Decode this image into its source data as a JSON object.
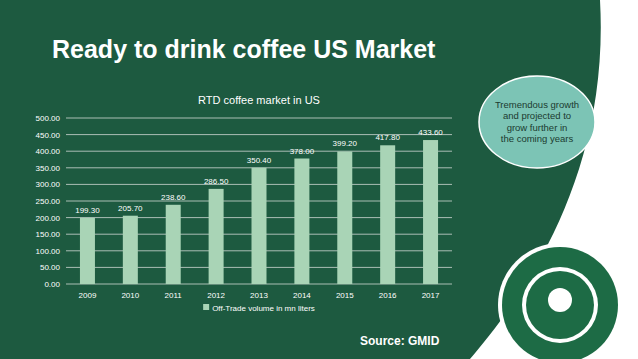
{
  "slide": {
    "title": "Ready to drink coffee US Market",
    "callout": "Tremendous growth and projected to grow further in the coming years",
    "source": "Source: GMID"
  },
  "chart_data": {
    "type": "bar",
    "title": "RTD coffee market in US",
    "categories": [
      "2009",
      "2010",
      "2011",
      "2012",
      "2013",
      "2014",
      "2015",
      "2016",
      "2017"
    ],
    "series": [
      {
        "name": "Off-Trade volume in mn liters",
        "color": "#a9d4b6",
        "values": [
          199.3,
          205.7,
          238.6,
          286.5,
          350.4,
          378.0,
          399.2,
          417.8,
          433.6
        ],
        "value_labels": [
          "199.30",
          "205.70",
          "238.60",
          "286.50",
          "350.40",
          "378.00",
          "399.20",
          "417.80",
          "433.60"
        ]
      }
    ],
    "ylim": [
      0,
      500
    ],
    "yticks": [
      {
        "value": 0,
        "label": "0.00"
      },
      {
        "value": 50,
        "label": "50.00"
      },
      {
        "value": 100,
        "label": "100.00"
      },
      {
        "value": 150,
        "label": "150.00"
      },
      {
        "value": 200,
        "label": "200.00"
      },
      {
        "value": 250,
        "label": "250.00"
      },
      {
        "value": 300,
        "label": "300.00"
      },
      {
        "value": 350,
        "label": "350.00"
      },
      {
        "value": 400,
        "label": "400.00"
      },
      {
        "value": 450,
        "label": "450.00"
      },
      {
        "value": 500,
        "label": "500.00"
      }
    ],
    "grid": true,
    "data_labels": true,
    "legend": "bottom"
  }
}
